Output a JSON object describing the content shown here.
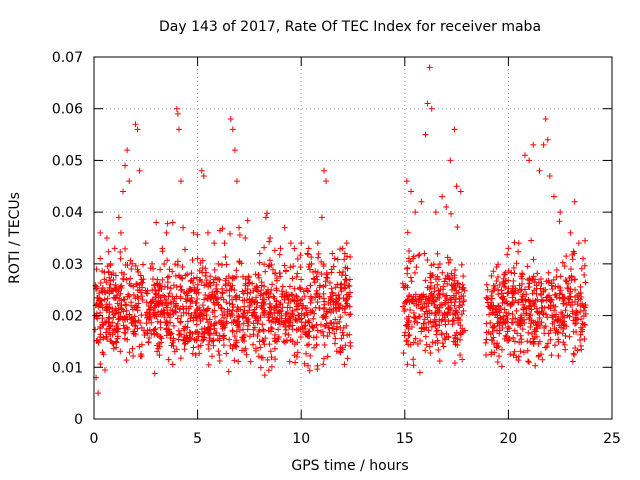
{
  "chart_data": {
    "type": "scatter",
    "title": "Day 143 of 2017, Rate Of TEC Index for receiver maba",
    "xlabel": "GPS time / hours",
    "ylabel": "ROTI / TECUs",
    "xlim": [
      0,
      25
    ],
    "ylim": [
      0,
      0.07
    ],
    "xticks": [
      0,
      5,
      10,
      15,
      20,
      25
    ],
    "yticks": [
      0,
      0.01,
      0.02,
      0.03,
      0.04,
      0.05,
      0.06,
      0.07
    ],
    "xtick_labels": [
      "0",
      "5",
      "10",
      "15",
      "20",
      "25"
    ],
    "ytick_labels": [
      "0",
      "0.01",
      "0.02",
      "0.03",
      "0.04",
      "0.05",
      "0.06",
      "0.07"
    ],
    "grid": true,
    "marker": "+",
    "color": "#ff0000",
    "data_gaps_hours": [
      [
        12.4,
        14.9
      ],
      [
        17.9,
        18.9
      ]
    ],
    "series": [
      {
        "name": "ROTI",
        "description": "dense scatter, baseline about 0.012-0.028 TECU, scattered spikes",
        "points": [
          [
            0.05,
            0.02
          ],
          [
            0.1,
            0.008
          ],
          [
            0.2,
            0.005
          ],
          [
            0.3,
            0.036
          ],
          [
            0.5,
            0.027
          ],
          [
            0.8,
            0.03
          ],
          [
            1.0,
            0.033
          ],
          [
            1.2,
            0.039
          ],
          [
            1.3,
            0.036
          ],
          [
            1.4,
            0.044
          ],
          [
            1.5,
            0.049
          ],
          [
            1.6,
            0.052
          ],
          [
            1.7,
            0.046
          ],
          [
            1.8,
            0.029
          ],
          [
            2.0,
            0.057
          ],
          [
            2.1,
            0.056
          ],
          [
            2.2,
            0.048
          ],
          [
            2.5,
            0.034
          ],
          [
            2.8,
            0.03
          ],
          [
            3.0,
            0.038
          ],
          [
            3.3,
            0.033
          ],
          [
            3.5,
            0.036
          ],
          [
            3.8,
            0.038
          ],
          [
            4.0,
            0.06
          ],
          [
            4.05,
            0.059
          ],
          [
            4.1,
            0.056
          ],
          [
            4.2,
            0.046
          ],
          [
            4.3,
            0.037
          ],
          [
            4.5,
            0.028
          ],
          [
            4.8,
            0.036
          ],
          [
            5.0,
            0.031
          ],
          [
            5.2,
            0.048
          ],
          [
            5.3,
            0.047
          ],
          [
            5.5,
            0.036
          ],
          [
            5.8,
            0.034
          ],
          [
            6.0,
            0.03
          ],
          [
            6.3,
            0.034
          ],
          [
            6.6,
            0.058
          ],
          [
            6.7,
            0.056
          ],
          [
            6.8,
            0.052
          ],
          [
            6.9,
            0.046
          ],
          [
            7.0,
            0.037
          ],
          [
            7.3,
            0.035
          ],
          [
            7.8,
            0.028
          ],
          [
            8.0,
            0.032
          ],
          [
            8.3,
            0.039
          ],
          [
            8.5,
            0.035
          ],
          [
            9.0,
            0.033
          ],
          [
            9.2,
            0.037
          ],
          [
            9.5,
            0.034
          ],
          [
            10.0,
            0.034
          ],
          [
            10.3,
            0.032
          ],
          [
            10.5,
            0.03
          ],
          [
            10.8,
            0.034
          ],
          [
            11.0,
            0.039
          ],
          [
            11.1,
            0.048
          ],
          [
            11.2,
            0.046
          ],
          [
            11.5,
            0.032
          ],
          [
            12.0,
            0.033
          ],
          [
            12.2,
            0.034
          ],
          [
            15.1,
            0.046
          ],
          [
            15.3,
            0.044
          ],
          [
            15.5,
            0.04
          ],
          [
            15.8,
            0.042
          ],
          [
            16.0,
            0.055
          ],
          [
            16.1,
            0.061
          ],
          [
            16.2,
            0.068
          ],
          [
            16.3,
            0.06
          ],
          [
            16.5,
            0.04
          ],
          [
            16.8,
            0.043
          ],
          [
            17.0,
            0.041
          ],
          [
            17.2,
            0.05
          ],
          [
            17.4,
            0.056
          ],
          [
            17.5,
            0.045
          ],
          [
            17.7,
            0.044
          ],
          [
            19.0,
            0.025
          ],
          [
            19.5,
            0.025
          ],
          [
            20.0,
            0.033
          ],
          [
            20.5,
            0.034
          ],
          [
            20.8,
            0.051
          ],
          [
            21.0,
            0.05
          ],
          [
            21.2,
            0.053
          ],
          [
            21.5,
            0.048
          ],
          [
            21.7,
            0.053
          ],
          [
            21.8,
            0.058
          ],
          [
            21.9,
            0.054
          ],
          [
            22.0,
            0.047
          ],
          [
            22.2,
            0.043
          ],
          [
            22.5,
            0.04
          ],
          [
            23.0,
            0.036
          ],
          [
            23.2,
            0.042
          ],
          [
            23.4,
            0.034
          ],
          [
            23.6,
            0.031
          ]
        ]
      }
    ]
  }
}
